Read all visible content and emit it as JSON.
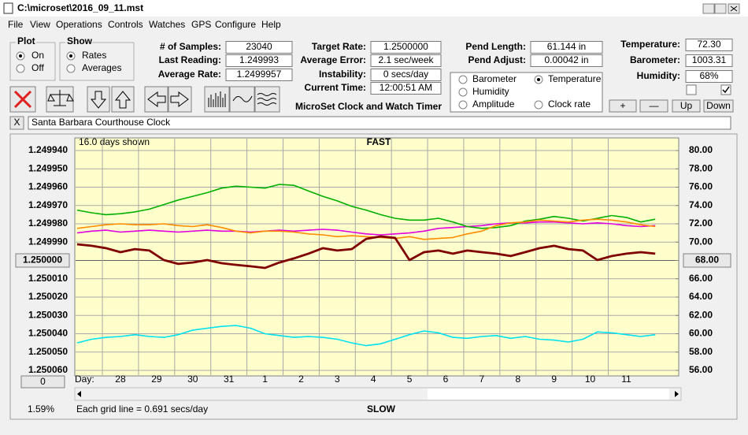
{
  "window": {
    "title": "C:\\microset\\2016_09_11.mst"
  },
  "menu": [
    "File",
    "View",
    "Operations",
    "Controls",
    "Watches",
    "GPS",
    "Configure",
    "Help"
  ],
  "plot_group": {
    "title": "Plot",
    "options": [
      "On",
      "Off"
    ],
    "selected": 0
  },
  "show_group": {
    "title": "Show",
    "options": [
      "Rates",
      "Averages"
    ],
    "selected": 0
  },
  "readouts": [
    [
      {
        "label": "# of Samples:",
        "value": "23040"
      },
      {
        "label": "Last Reading:",
        "value": "1.249993"
      },
      {
        "label": "Average Rate:",
        "value": "1.2499957"
      }
    ],
    [
      {
        "label": "Target Rate:",
        "value": "1.2500000"
      },
      {
        "label": "Average Error:",
        "value": "2.1 sec/week"
      },
      {
        "label": "Instability:",
        "value": "0 secs/day"
      },
      {
        "label": "Current Time:",
        "value": "12:00:51 AM"
      }
    ],
    [
      {
        "label": "Pend Length:",
        "value": "61.144 in"
      },
      {
        "label": "Pend Adjust:",
        "value": "0.00042 in"
      }
    ],
    [
      {
        "label": "Temperature:",
        "value": "72.30"
      },
      {
        "label": "Barometer:",
        "value": "1003.31"
      },
      {
        "label": "Humidity:",
        "value": "68%"
      }
    ]
  ],
  "app_name": "MicroSet Clock and Watch Timer",
  "adjust_buttons": [
    "+",
    "—",
    "Up",
    "Down"
  ],
  "watch_close": "X",
  "watch_name": "Santa Barbara Courthouse Clock",
  "offset_button": "0",
  "percent": "1.59%",
  "chart_data": {
    "type": "line",
    "days_shown": "16.0 days shown",
    "top_label": "FAST",
    "bottom_label": "SLOW",
    "grid_note": "Each grid line = 0.691 secs/day",
    "x_label": "Day:",
    "grid": true,
    "invert_y": true,
    "selected_series": 2,
    "xlim": [
      0.28,
      16.95
    ],
    "xticks": [
      {
        "value": 1,
        "label": "28"
      },
      {
        "value": 2,
        "label": "29"
      },
      {
        "value": 3,
        "label": "30"
      },
      {
        "value": 4,
        "label": "31"
      },
      {
        "value": 5,
        "label": "1"
      },
      {
        "value": 6,
        "label": "2"
      },
      {
        "value": 7,
        "label": "3"
      },
      {
        "value": 8,
        "label": "4"
      },
      {
        "value": 9,
        "label": "5"
      },
      {
        "value": 10,
        "label": "6"
      },
      {
        "value": 11,
        "label": "7"
      },
      {
        "value": 12,
        "label": "8"
      },
      {
        "value": 13,
        "label": "9"
      },
      {
        "value": 14,
        "label": "10"
      },
      {
        "value": 15,
        "label": "11"
      }
    ],
    "ylim": [
      1.24994,
      1.25006
    ],
    "yticks": [
      {
        "value": 1.24994,
        "label": "1.249940"
      },
      {
        "value": 1.24995,
        "label": "1.249950"
      },
      {
        "value": 1.24996,
        "label": "1.249960"
      },
      {
        "value": 1.24997,
        "label": "1.249970"
      },
      {
        "value": 1.24998,
        "label": "1.249980"
      },
      {
        "value": 1.24999,
        "label": "1.249990"
      },
      {
        "value": 1.25,
        "label": "1.250000"
      },
      {
        "value": 1.25001,
        "label": "1.250010"
      },
      {
        "value": 1.25002,
        "label": "1.250020"
      },
      {
        "value": 1.25003,
        "label": "1.250030"
      },
      {
        "value": 1.25004,
        "label": "1.250040"
      },
      {
        "value": 1.25005,
        "label": "1.250050"
      },
      {
        "value": 1.25006,
        "label": "1.250060"
      }
    ],
    "y2lim": [
      56,
      80
    ],
    "y2ticks": [
      {
        "value": 80,
        "label": "80.00"
      },
      {
        "value": 78,
        "label": "78.00"
      },
      {
        "value": 76,
        "label": "76.00"
      },
      {
        "value": 74,
        "label": "74.00"
      },
      {
        "value": 72,
        "label": "72.00"
      },
      {
        "value": 70,
        "label": "70.00"
      },
      {
        "value": 68,
        "label": "68.00"
      },
      {
        "value": 66,
        "label": "66.00"
      },
      {
        "value": 64,
        "label": "64.00"
      },
      {
        "value": 62,
        "label": "62.00"
      },
      {
        "value": 60,
        "label": "60.00"
      },
      {
        "value": 58,
        "label": "58.00"
      },
      {
        "value": 56,
        "label": "56.00"
      }
    ],
    "x": [
      0.3,
      0.7,
      1.1,
      1.5,
      1.9,
      2.3,
      2.7,
      3.1,
      3.5,
      3.9,
      4.3,
      4.7,
      5.1,
      5.5,
      5.9,
      6.3,
      6.7,
      7.1,
      7.5,
      7.9,
      8.3,
      8.7,
      9.1,
      9.5,
      9.9,
      10.3,
      10.7,
      11.1,
      11.5,
      11.9,
      12.3,
      12.7,
      13.1,
      13.5,
      13.9,
      14.3,
      14.7,
      15.1,
      15.5,
      15.9,
      16.3
    ],
    "series": [
      {
        "name": "Clock rate",
        "color": "#800000",
        "axis": "y",
        "values": [
          1.2499912,
          1.249992,
          1.2499933,
          1.2499955,
          1.2499938,
          1.2499946,
          1.2499998,
          1.2500019,
          1.2500011,
          1.2499998,
          1.2500015,
          1.2500024,
          1.2500032,
          1.2500041,
          1.2500011,
          1.2499989,
          1.2499963,
          1.2499933,
          1.2499946,
          1.2499938,
          1.2499882,
          1.2499869,
          1.2499877,
          1.2499998,
          1.2499955,
          1.2499946,
          1.2499963,
          1.2499946,
          1.2499955,
          1.2499963,
          1.2499976,
          1.2499955,
          1.2499933,
          1.249992,
          1.2499938,
          1.2499946,
          1.2499998,
          1.2499976,
          1.2499963,
          1.2499955,
          1.2499963
        ]
      },
      {
        "name": "Barometer",
        "color": "#ff8c00",
        "axis": "y2",
        "values": [
          71.5,
          71.7,
          71.9,
          72.0,
          71.9,
          71.9,
          72.0,
          71.8,
          71.7,
          71.9,
          71.6,
          71.2,
          71.0,
          71.2,
          71.2,
          71.1,
          70.9,
          70.8,
          70.6,
          70.7,
          70.6,
          70.5,
          70.4,
          70.6,
          70.3,
          70.4,
          70.5,
          70.9,
          71.2,
          71.8,
          72.1,
          72.2,
          72.4,
          72.3,
          72.2,
          72.4,
          72.5,
          72.4,
          72.2,
          71.9,
          71.7
        ]
      },
      {
        "name": "Temperature",
        "color": "#00b000",
        "axis": "y2",
        "values": [
          73.5,
          73.2,
          73.0,
          73.1,
          73.3,
          73.6,
          74.1,
          74.6,
          75.0,
          75.4,
          75.9,
          76.1,
          76.0,
          75.9,
          76.3,
          76.2,
          75.6,
          75.0,
          74.5,
          73.9,
          73.5,
          73.0,
          72.6,
          72.4,
          72.4,
          72.6,
          72.2,
          71.7,
          71.5,
          71.6,
          71.8,
          72.3,
          72.5,
          72.8,
          72.6,
          72.3,
          72.6,
          72.9,
          72.7,
          72.2,
          72.5
        ]
      },
      {
        "name": "Humidity",
        "color": "#e000e0",
        "axis": "y2",
        "values": [
          71.0,
          71.2,
          71.3,
          71.1,
          71.2,
          71.3,
          71.2,
          71.1,
          71.2,
          71.3,
          71.2,
          71.2,
          71.1,
          71.2,
          71.3,
          71.2,
          71.3,
          71.4,
          71.3,
          71.1,
          70.9,
          70.8,
          70.9,
          71.0,
          71.2,
          71.5,
          71.6,
          71.7,
          71.8,
          72.0,
          72.1,
          72.1,
          72.2,
          72.2,
          72.1,
          72.0,
          72.1,
          72.0,
          71.8,
          71.7,
          71.8
        ]
      },
      {
        "name": "Amplitude",
        "color": "#00e0f0",
        "axis": "y2",
        "values": [
          59.0,
          59.4,
          59.6,
          59.7,
          59.9,
          59.7,
          59.6,
          59.9,
          60.4,
          60.6,
          60.8,
          60.9,
          60.6,
          60.0,
          59.8,
          59.6,
          59.7,
          59.6,
          59.4,
          59.0,
          58.7,
          58.9,
          59.4,
          59.9,
          60.3,
          60.1,
          59.6,
          59.5,
          59.7,
          59.8,
          59.5,
          59.7,
          59.4,
          59.3,
          59.1,
          59.4,
          60.2,
          60.1,
          59.9,
          59.7,
          59.9
        ]
      }
    ]
  }
}
